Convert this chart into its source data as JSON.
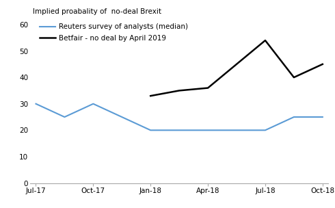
{
  "title": "Implied proabality of  no-deal Brexit",
  "reuters_x": [
    0,
    1,
    2,
    3,
    4,
    5,
    6,
    7,
    8,
    9,
    10
  ],
  "reuters_y": [
    30,
    25,
    30,
    25,
    20,
    20,
    20,
    20,
    20,
    25,
    25
  ],
  "betfair_x": [
    4,
    5,
    6,
    7,
    8,
    9,
    10
  ],
  "betfair_y": [
    33,
    35,
    36,
    45,
    54,
    40,
    45
  ],
  "xtick_positions": [
    0,
    2,
    4,
    6,
    8,
    10
  ],
  "xtick_labels": [
    "Jul-17",
    "Oct-17",
    "Jan-18",
    "Apr-18",
    "Jul-18",
    "Oct-18"
  ],
  "ytick_positions": [
    0,
    10,
    20,
    30,
    40,
    50,
    60
  ],
  "ylim": [
    0,
    63
  ],
  "xlim": [
    -0.2,
    10.2
  ],
  "reuters_color": "#5B9BD5",
  "betfair_color": "#000000",
  "legend_reuters": "Reuters survey of analysts (median)",
  "legend_betfair": "Betfair - no deal by April 2019",
  "background_color": "#ffffff",
  "reuters_linewidth": 1.5,
  "betfair_linewidth": 1.8,
  "title_fontsize": 7.5,
  "legend_fontsize": 7.5,
  "tick_fontsize": 7.5
}
